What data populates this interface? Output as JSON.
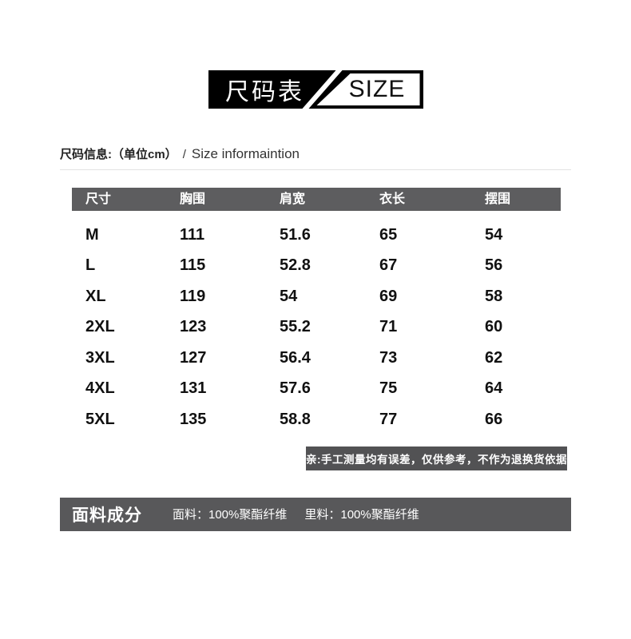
{
  "banner": {
    "title_cn": "尺码表",
    "title_en": "SIZE"
  },
  "info": {
    "label_cn": "尺码信息:（单位cm）",
    "separator": "/",
    "label_en": "Size informaintion"
  },
  "chart_data": {
    "type": "table",
    "title": "尺码表 / SIZE",
    "unit": "cm",
    "columns": [
      "尺寸",
      "胸围",
      "肩宽",
      "衣长",
      "摆围"
    ],
    "rows": [
      [
        "M",
        "111",
        "51.6",
        "65",
        "54"
      ],
      [
        "L",
        "115",
        "52.8",
        "67",
        "56"
      ],
      [
        "XL",
        "119",
        "54",
        "69",
        "58"
      ],
      [
        "2XL",
        "123",
        "55.2",
        "71",
        "60"
      ],
      [
        "3XL",
        "127",
        "56.4",
        "73",
        "62"
      ],
      [
        "4XL",
        "131",
        "57.6",
        "75",
        "64"
      ],
      [
        "5XL",
        "135",
        "58.8",
        "77",
        "66"
      ]
    ]
  },
  "note": {
    "text": "亲:手工测量均有误差，仅供参考，不作为退换货依据"
  },
  "fabric": {
    "title": "面料成分",
    "outer": "面料：100%聚酯纤维",
    "lining": "里料：100%聚酯纤维"
  },
  "colors": {
    "banner_black": "#000000",
    "table_header_gray": "#5d5d5f",
    "note_gray": "#525254",
    "fabric_bar_gray": "#58585a",
    "divider_gray": "#e3e3e3",
    "text_black": "#111111",
    "text_white": "#ffffff"
  }
}
